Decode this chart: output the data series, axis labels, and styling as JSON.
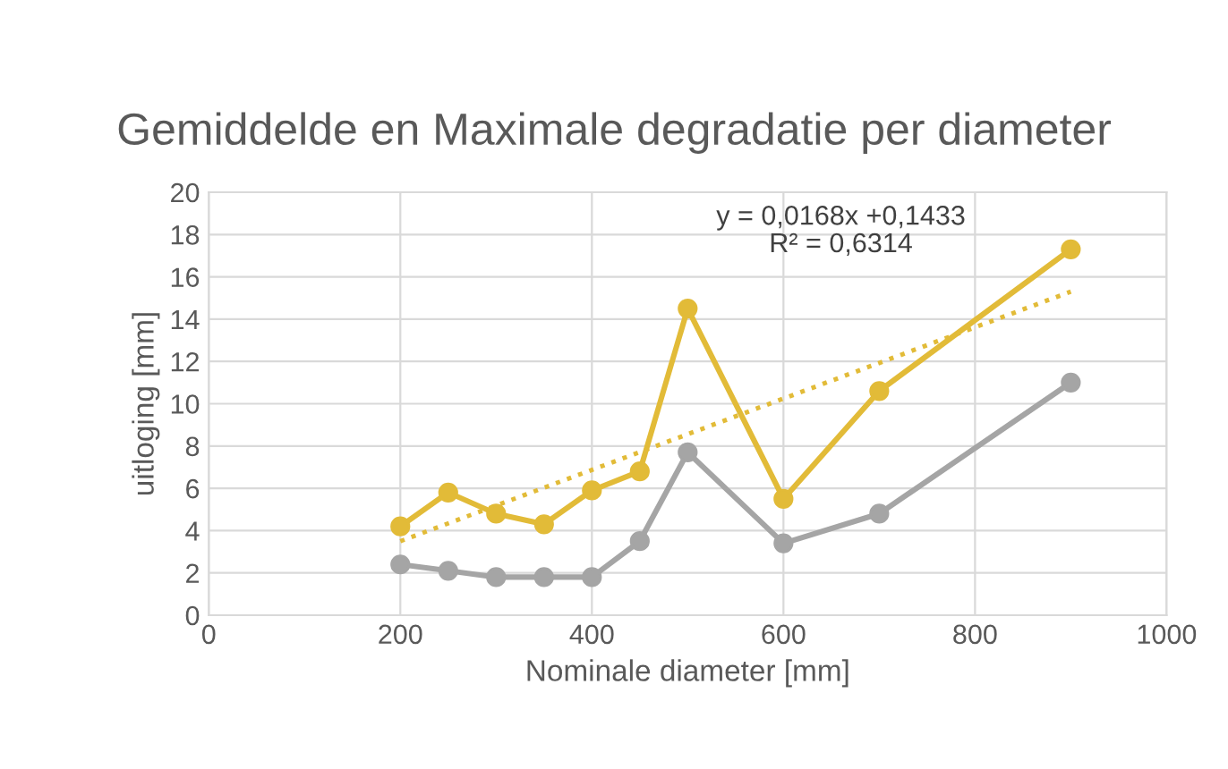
{
  "chart_data": {
    "type": "line",
    "title": "Gemiddelde en Maximale degradatie per diameter",
    "xlabel": "Nominale diameter [mm]",
    "ylabel": "uitloging [mm]",
    "xlim": [
      0,
      1000
    ],
    "xticks": [
      0,
      200,
      400,
      600,
      800,
      1000
    ],
    "ylim": [
      0,
      20
    ],
    "yticks": [
      0,
      2,
      4,
      6,
      8,
      10,
      12,
      14,
      16,
      18,
      20
    ],
    "grid": true,
    "marker": "circle",
    "line_style": "solid",
    "annotations": [
      "y = 0,0168x +0,1433\nR² = 0,6314"
    ],
    "series": [
      {
        "color": "#e2bb38",
        "x": [
          200,
          250,
          300,
          350,
          400,
          450,
          500,
          600,
          700,
          900
        ],
        "values": [
          4.2,
          5.8,
          4.8,
          4.3,
          5.9,
          6.8,
          14.5,
          5.5,
          10.6,
          17.3
        ]
      },
      {
        "color": "#a5a5a5",
        "x": [
          200,
          250,
          300,
          350,
          400,
          450,
          500,
          600,
          700,
          900
        ],
        "values": [
          2.4,
          2.1,
          1.8,
          1.8,
          1.8,
          3.5,
          7.7,
          3.4,
          4.8,
          11.0
        ]
      },
      {
        "color": "#e2bb38",
        "x": [
          200,
          900
        ],
        "values": [
          3.5,
          15.3
        ],
        "marker": "none",
        "line_style": "dotted"
      }
    ]
  }
}
